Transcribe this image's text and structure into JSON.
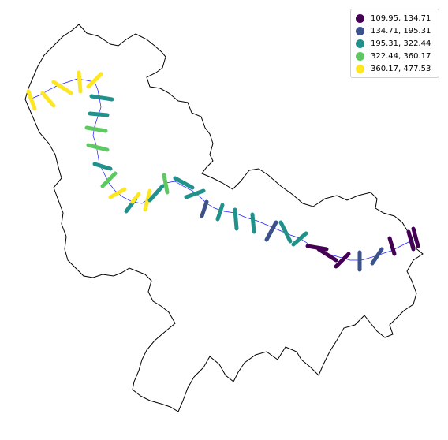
{
  "legend": {
    "items": [
      {
        "label": "109.95, 134.71",
        "color": "#440154"
      },
      {
        "label": "134.71, 195.31",
        "color": "#3b528b"
      },
      {
        "label": "195.31, 322.44",
        "color": "#21918c"
      },
      {
        "label": "322.44, 360.17",
        "color": "#5ec962"
      },
      {
        "label": "360.17, 477.53",
        "color": "#fde725"
      }
    ]
  },
  "styles": {
    "boundary_color": "#000000",
    "river_color": "#1a1aff"
  }
}
